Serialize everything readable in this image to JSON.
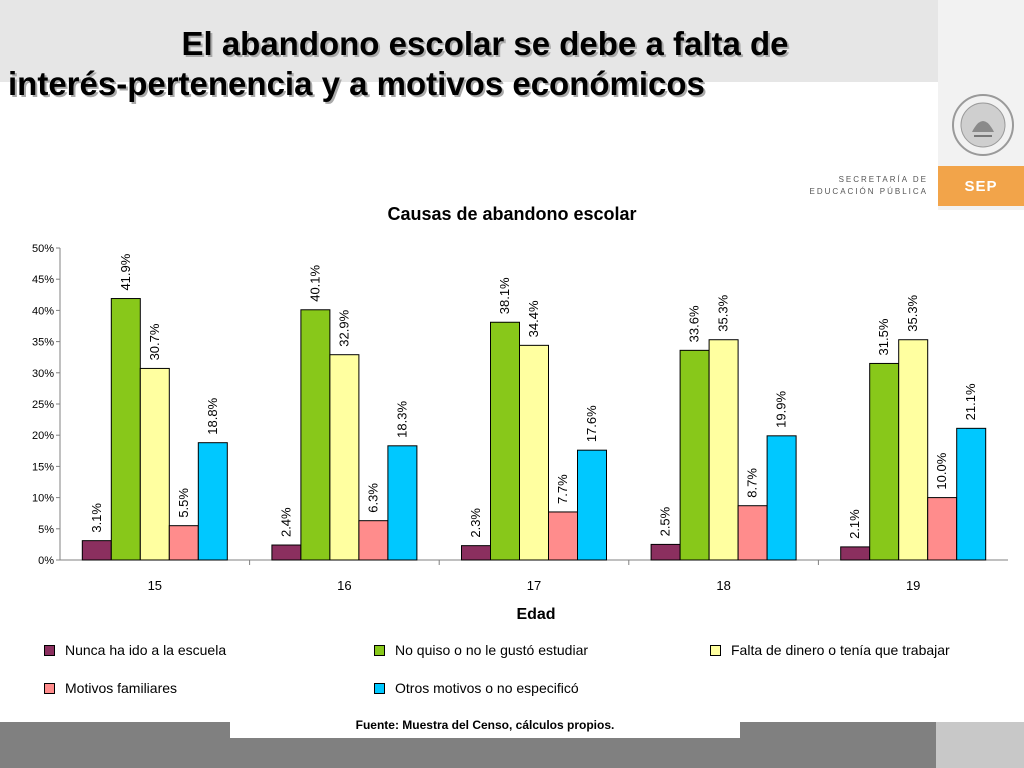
{
  "slide": {
    "title_line1": "El abandono escolar se debe a falta de",
    "title_line2": "interés-pertenencia y a motivos económicos",
    "source": "Fuente: Muestra del Censo, cálculos propios."
  },
  "logo": {
    "secretaria_line1": "SECRETARÍA DE",
    "secretaria_line2": "EDUCACIÓN PÚBLICA",
    "badge": "SEP",
    "badge_color": "#f2a44a"
  },
  "chart_data": {
    "type": "bar",
    "title": "Causas de abandono escolar",
    "xlabel": "Edad",
    "ylabel": "",
    "ylim": [
      0,
      50
    ],
    "yticks": [
      "0%",
      "5%",
      "10%",
      "15%",
      "20%",
      "25%",
      "30%",
      "35%",
      "40%",
      "45%",
      "50%"
    ],
    "categories": [
      "15",
      "16",
      "17",
      "18",
      "19"
    ],
    "legend_position": "bottom",
    "grid": false,
    "series": [
      {
        "name": "Nunca ha ido a la escuela",
        "color": "#8b2f5f",
        "values": [
          3.1,
          2.4,
          2.3,
          2.5,
          2.1
        ],
        "labels": [
          "3.1%",
          "2.4%",
          "2.3%",
          "2.5%",
          "2.1%"
        ]
      },
      {
        "name": "No quiso o no le gustó estudiar",
        "color": "#88c81a",
        "values": [
          41.9,
          40.1,
          38.1,
          33.6,
          31.5
        ],
        "labels": [
          "41.9%",
          "40.1%",
          "38.1%",
          "33.6%",
          "31.5%"
        ]
      },
      {
        "name": "Falta de dinero o tenía que trabajar",
        "color": "#ffffa0",
        "values": [
          30.7,
          32.9,
          34.4,
          35.3,
          35.3
        ],
        "labels": [
          "30.7%",
          "32.9%",
          "34.4%",
          "35.3%",
          "35.3%"
        ]
      },
      {
        "name": "Motivos familiares",
        "color": "#ff8c8c",
        "values": [
          5.5,
          6.3,
          7.7,
          8.7,
          10.0
        ],
        "labels": [
          "5.5%",
          "6.3%",
          "7.7%",
          "8.7%",
          "10.0%"
        ]
      },
      {
        "name": "Otros motivos o no especificó",
        "color": "#00c8ff",
        "values": [
          18.8,
          18.3,
          17.6,
          19.9,
          21.1
        ],
        "labels": [
          "18.8%",
          "18.3%",
          "17.6%",
          "19.9%",
          "21.1%"
        ]
      }
    ]
  }
}
